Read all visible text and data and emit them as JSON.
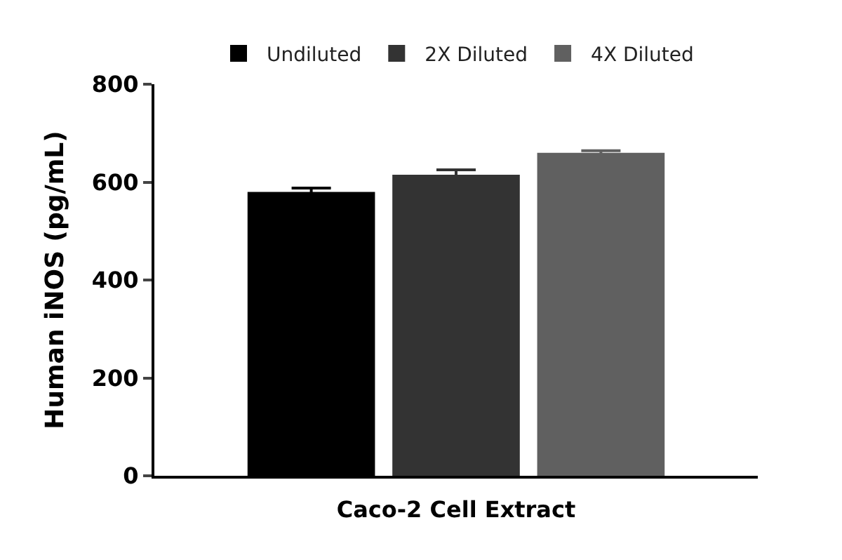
{
  "chart_data": {
    "type": "bar",
    "xlabel": "Caco-2 Cell Extract",
    "ylabel": "Human iNOS (pg/mL)",
    "categories": [
      null
    ],
    "series": [
      {
        "name": "Undiluted",
        "color": "#000000",
        "values": [
          580
        ],
        "errors": [
          8
        ]
      },
      {
        "name": "2X Diluted",
        "color": "#333333",
        "values": [
          615
        ],
        "errors": [
          10
        ]
      },
      {
        "name": "4X Diluted",
        "color": "#606060",
        "values": [
          660
        ],
        "errors": [
          4
        ]
      }
    ],
    "ylim": [
      0,
      800
    ],
    "yticks": [
      0,
      200,
      400,
      600,
      800
    ],
    "legend": "top"
  }
}
